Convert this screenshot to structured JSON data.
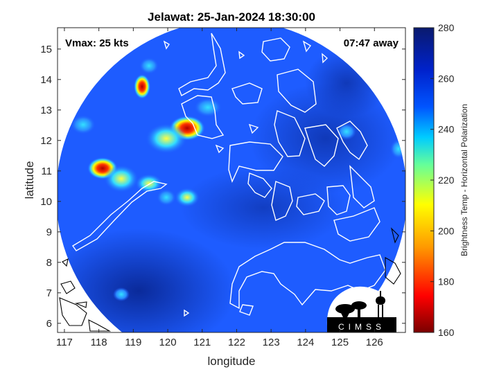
{
  "title": "Jelawat: 25-Jan-2024 18:30:00",
  "annotations": {
    "vmax": "Vmax: 25 kts",
    "time_away": "07:47 away"
  },
  "axes": {
    "xlabel": "longitude",
    "ylabel": "latitude",
    "xticks": [
      "117",
      "118",
      "119",
      "120",
      "121",
      "122",
      "123",
      "124",
      "125",
      "126"
    ],
    "yticks": [
      "6",
      "7",
      "8",
      "9",
      "10",
      "11",
      "12",
      "13",
      "14",
      "15"
    ],
    "xlim": [
      116.8,
      126.9
    ],
    "ylim": [
      5.7,
      15.7
    ]
  },
  "colorbar": {
    "label": "Brightness Temp - Horizontal Polarization",
    "ticks": [
      "160",
      "180",
      "200",
      "220",
      "240",
      "260",
      "280"
    ],
    "range": [
      160,
      280
    ],
    "colors": [
      "#7a0000",
      "#ff0000",
      "#ff9900",
      "#ffff00",
      "#66ff99",
      "#00ccff",
      "#0055ff",
      "#0022cc",
      "#0a1a6e"
    ]
  },
  "logo": {
    "text": "CIMSS"
  }
}
